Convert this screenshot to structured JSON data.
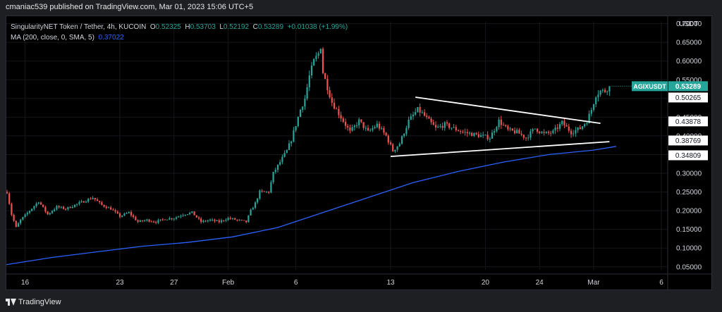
{
  "header": {
    "text": "cmaniac539 published on TradingView.com, Mar 01, 2023 15:06 UTC+5"
  },
  "legend": {
    "symbol": "SingularityNET Token / Tether, 4h, KUCOIN",
    "o_label": "O",
    "o": "0.52325",
    "h_label": "H",
    "h": "0.53703",
    "l_label": "L",
    "l": "0.52192",
    "c_label": "C",
    "c": "0.53289",
    "change": "+0.01038 (+1.99%)",
    "ma_label": "MA (200, close, 0, SMA, 5)",
    "ma_value": "0.37022"
  },
  "footer": {
    "brand": "TradingView"
  },
  "colors": {
    "up": "#26a69a",
    "down": "#ef5350",
    "ma": "#2962ff",
    "trendline": "#ffffff",
    "badge": "#26a69a"
  },
  "chart_data": {
    "type": "candlestick",
    "title": "",
    "currency": "USDT",
    "ylim": [
      0.042,
      0.705
    ],
    "y_ticks": [
      "0.05000",
      "0.10000",
      "0.15000",
      "0.20000",
      "0.25000",
      "0.30000",
      "0.35000",
      "0.40000",
      "0.45000",
      "0.50000",
      "0.55000",
      "0.60000",
      "0.65000",
      "0.70000"
    ],
    "x_ticks": [
      {
        "label": "16",
        "t": 8
      },
      {
        "label": "23",
        "t": 50
      },
      {
        "label": "27",
        "t": 74
      },
      {
        "label": "Feb",
        "t": 98
      },
      {
        "label": "6",
        "t": 128
      },
      {
        "label": "13",
        "t": 170
      },
      {
        "label": "20",
        "t": 212
      },
      {
        "label": "24",
        "t": 236
      },
      {
        "label": "Mar",
        "t": 260
      },
      {
        "label": "6",
        "t": 290
      }
    ],
    "t_range": [
      -1,
      294
    ],
    "price_path": [
      [
        0,
        0.25
      ],
      [
        2,
        0.19
      ],
      [
        4,
        0.155
      ],
      [
        6,
        0.175
      ],
      [
        10,
        0.2
      ],
      [
        14,
        0.225
      ],
      [
        18,
        0.19
      ],
      [
        22,
        0.21
      ],
      [
        26,
        0.205
      ],
      [
        30,
        0.215
      ],
      [
        34,
        0.225
      ],
      [
        38,
        0.235
      ],
      [
        42,
        0.215
      ],
      [
        46,
        0.205
      ],
      [
        50,
        0.185
      ],
      [
        54,
        0.195
      ],
      [
        58,
        0.17
      ],
      [
        62,
        0.175
      ],
      [
        66,
        0.17
      ],
      [
        70,
        0.178
      ],
      [
        74,
        0.18
      ],
      [
        78,
        0.19
      ],
      [
        82,
        0.195
      ],
      [
        86,
        0.17
      ],
      [
        90,
        0.175
      ],
      [
        94,
        0.17
      ],
      [
        98,
        0.18
      ],
      [
        102,
        0.175
      ],
      [
        106,
        0.17
      ],
      [
        108,
        0.2
      ],
      [
        110,
        0.22
      ],
      [
        112,
        0.25
      ],
      [
        114,
        0.25
      ],
      [
        116,
        0.25
      ],
      [
        118,
        0.3
      ],
      [
        121,
        0.33
      ],
      [
        124,
        0.36
      ],
      [
        126,
        0.39
      ],
      [
        128,
        0.43
      ],
      [
        130,
        0.47
      ],
      [
        132,
        0.5
      ],
      [
        134,
        0.56
      ],
      [
        136,
        0.6
      ],
      [
        138,
        0.62
      ],
      [
        139,
        0.64
      ],
      [
        140,
        0.57
      ],
      [
        142,
        0.53
      ],
      [
        144,
        0.49
      ],
      [
        146,
        0.47
      ],
      [
        148,
        0.45
      ],
      [
        150,
        0.43
      ],
      [
        152,
        0.41
      ],
      [
        156,
        0.44
      ],
      [
        160,
        0.41
      ],
      [
        164,
        0.43
      ],
      [
        168,
        0.4
      ],
      [
        171,
        0.36
      ],
      [
        174,
        0.38
      ],
      [
        178,
        0.44
      ],
      [
        182,
        0.47
      ],
      [
        184,
        0.46
      ],
      [
        187,
        0.44
      ],
      [
        190,
        0.42
      ],
      [
        194,
        0.43
      ],
      [
        198,
        0.42
      ],
      [
        202,
        0.41
      ],
      [
        206,
        0.405
      ],
      [
        210,
        0.4
      ],
      [
        214,
        0.395
      ],
      [
        218,
        0.44
      ],
      [
        222,
        0.415
      ],
      [
        226,
        0.41
      ],
      [
        230,
        0.395
      ],
      [
        234,
        0.42
      ],
      [
        238,
        0.405
      ],
      [
        242,
        0.41
      ],
      [
        246,
        0.435
      ],
      [
        250,
        0.41
      ],
      [
        254,
        0.42
      ],
      [
        257,
        0.44
      ],
      [
        259,
        0.47
      ],
      [
        261,
        0.51
      ],
      [
        263,
        0.52
      ],
      [
        265,
        0.52
      ],
      [
        267,
        0.53289
      ]
    ],
    "ma_points": [
      [
        -1,
        0.055
      ],
      [
        20,
        0.075
      ],
      [
        40,
        0.09
      ],
      [
        60,
        0.105
      ],
      [
        80,
        0.115
      ],
      [
        100,
        0.13
      ],
      [
        120,
        0.155
      ],
      [
        140,
        0.195
      ],
      [
        160,
        0.235
      ],
      [
        180,
        0.275
      ],
      [
        200,
        0.305
      ],
      [
        220,
        0.33
      ],
      [
        240,
        0.35
      ],
      [
        260,
        0.362
      ],
      [
        270,
        0.372
      ]
    ],
    "trendlines": [
      {
        "from": [
          181,
          0.5035
        ],
        "to": [
          263,
          0.4335
        ]
      },
      {
        "from": [
          170,
          0.345
        ],
        "to": [
          267,
          0.3845
        ]
      }
    ],
    "price_labels": [
      {
        "value": 0.53289,
        "text": "0.53289",
        "kind": "badge",
        "symbol": "AGIXUSDT"
      },
      {
        "value": 0.50265,
        "text": "0.50265",
        "kind": "plain"
      },
      {
        "value": 0.43878,
        "text": "0.43878",
        "kind": "plain"
      },
      {
        "value": 0.38769,
        "text": "0.38769",
        "kind": "plain"
      },
      {
        "value": 0.34809,
        "text": "0.34809",
        "kind": "plain"
      }
    ]
  }
}
